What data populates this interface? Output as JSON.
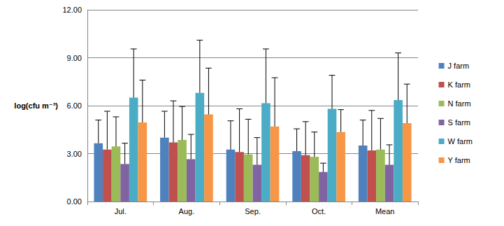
{
  "chart_data": {
    "type": "bar",
    "y_label": "log(cfu m⁻³)",
    "categories": [
      "Jul.",
      "Aug.",
      "Sep.",
      "Oct.",
      "Mean"
    ],
    "series": [
      {
        "name": "J farm",
        "color": "#4F81BD",
        "values": [
          3.65,
          4.0,
          3.25,
          3.15,
          3.5
        ],
        "errors": [
          1.45,
          1.65,
          1.8,
          1.4,
          1.6
        ]
      },
      {
        "name": "K farm",
        "color": "#C0504D",
        "values": [
          3.25,
          3.7,
          3.1,
          2.9,
          3.2
        ],
        "errors": [
          2.4,
          2.6,
          2.7,
          2.1,
          2.5
        ]
      },
      {
        "name": "N farm",
        "color": "#9BBB59",
        "values": [
          3.45,
          3.85,
          2.95,
          2.8,
          3.25
        ],
        "errors": [
          1.85,
          2.1,
          2.2,
          1.55,
          1.95
        ]
      },
      {
        "name": "S farm",
        "color": "#8064A2",
        "values": [
          2.35,
          2.65,
          2.3,
          1.85,
          2.3
        ],
        "errors": [
          1.3,
          1.55,
          1.7,
          0.55,
          1.25
        ]
      },
      {
        "name": "W farm",
        "color": "#4BACC6",
        "values": [
          6.5,
          6.8,
          6.15,
          5.8,
          6.35
        ],
        "errors": [
          3.05,
          3.3,
          3.4,
          2.1,
          2.95
        ]
      },
      {
        "name": "Y farm",
        "color": "#F79646",
        "values": [
          4.95,
          5.45,
          4.7,
          4.35,
          4.9
        ],
        "errors": [
          2.65,
          2.9,
          3.05,
          1.4,
          2.45
        ]
      }
    ],
    "ylim": [
      0,
      12
    ],
    "yticks": [
      {
        "value": 0,
        "label": "0.00"
      },
      {
        "value": 3,
        "label": "3.00"
      },
      {
        "value": 6,
        "label": "6.00"
      },
      {
        "value": 9,
        "label": "9.00"
      },
      {
        "value": 12,
        "label": "12.00"
      }
    ],
    "grid": true,
    "legend": "right"
  }
}
